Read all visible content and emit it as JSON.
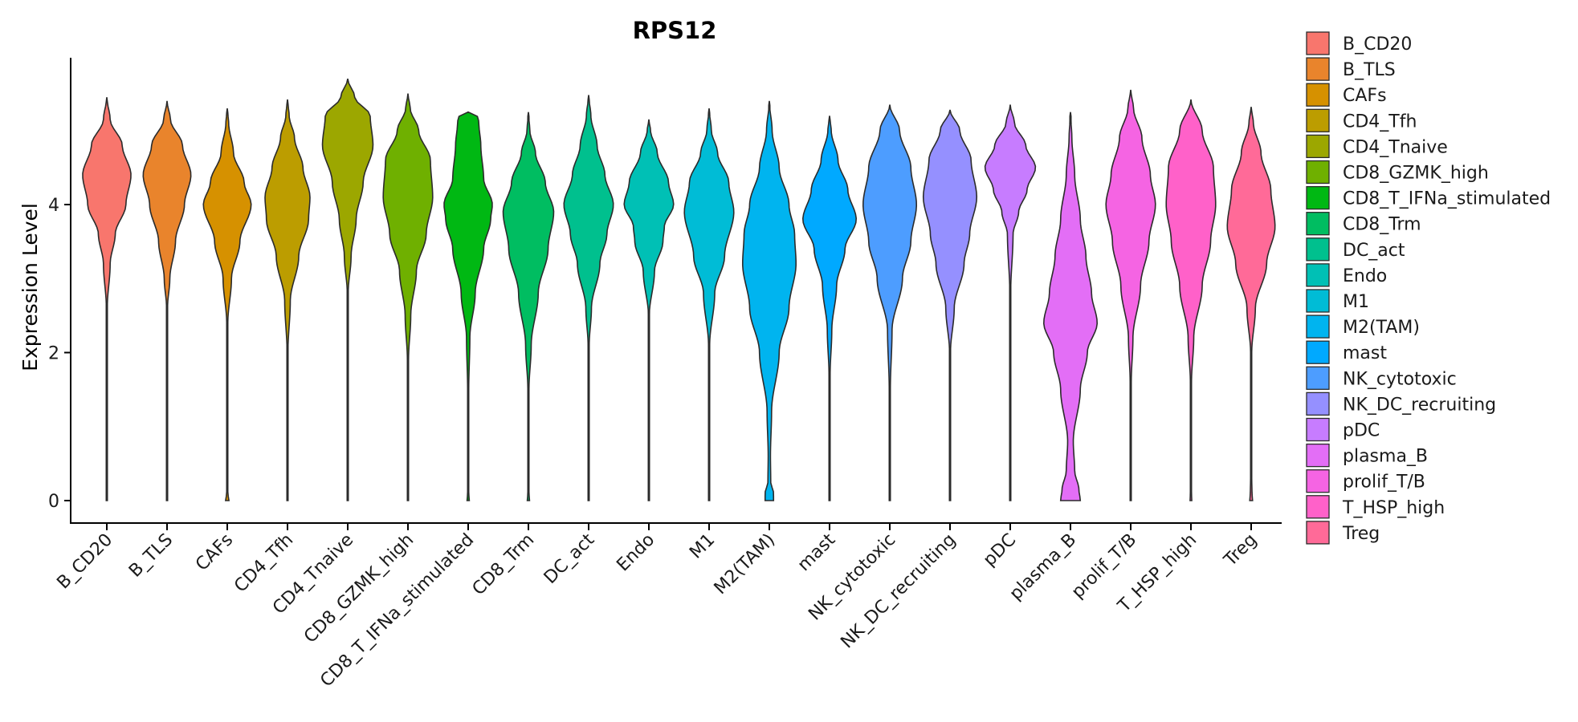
{
  "chart_data": {
    "type": "violin",
    "title": "RPS12",
    "xlabel": "",
    "ylabel": "Expression Level",
    "ylim": [
      -0.28,
      5.95
    ],
    "y_ticks": [
      0,
      2,
      4
    ],
    "grid": false,
    "legend_position": "right",
    "categories": [
      {
        "name": "B_CD20",
        "color": "#F8766D",
        "min": 0.0,
        "max": 5.45,
        "profile": [
          [
            0,
            0.01
          ],
          [
            2.6,
            0.015
          ],
          [
            3.2,
            0.12
          ],
          [
            3.6,
            0.3
          ],
          [
            4.0,
            0.68
          ],
          [
            4.4,
            0.86
          ],
          [
            4.8,
            0.55
          ],
          [
            5.15,
            0.12
          ],
          [
            5.45,
            0.0
          ]
        ]
      },
      {
        "name": "B_TLS",
        "color": "#E9842C",
        "min": 0.0,
        "max": 5.4,
        "profile": [
          [
            0,
            0.01
          ],
          [
            2.6,
            0.015
          ],
          [
            3.0,
            0.1
          ],
          [
            3.5,
            0.3
          ],
          [
            4.0,
            0.62
          ],
          [
            4.4,
            0.85
          ],
          [
            4.8,
            0.55
          ],
          [
            5.15,
            0.12
          ],
          [
            5.4,
            0.0
          ]
        ]
      },
      {
        "name": "CAFs",
        "color": "#D69100",
        "min": 0.0,
        "max": 5.3,
        "profile": [
          [
            0,
            0.06
          ],
          [
            0.1,
            0.02
          ],
          [
            2.4,
            0.02
          ],
          [
            3.0,
            0.15
          ],
          [
            3.5,
            0.45
          ],
          [
            4.0,
            0.85
          ],
          [
            4.3,
            0.6
          ],
          [
            4.7,
            0.22
          ],
          [
            5.1,
            0.05
          ],
          [
            5.3,
            0.0
          ]
        ]
      },
      {
        "name": "CD4_Tfh",
        "color": "#BC9D00",
        "min": 0.0,
        "max": 5.42,
        "profile": [
          [
            0,
            0.01
          ],
          [
            2.0,
            0.015
          ],
          [
            2.7,
            0.1
          ],
          [
            3.3,
            0.4
          ],
          [
            3.8,
            0.75
          ],
          [
            4.1,
            0.8
          ],
          [
            4.5,
            0.55
          ],
          [
            4.9,
            0.25
          ],
          [
            5.2,
            0.06
          ],
          [
            5.42,
            0.0
          ]
        ]
      },
      {
        "name": "CD4_Tnaive",
        "color": "#9CA700",
        "min": 0.0,
        "max": 5.7,
        "profile": [
          [
            0,
            0.01
          ],
          [
            2.8,
            0.015
          ],
          [
            3.3,
            0.12
          ],
          [
            3.8,
            0.3
          ],
          [
            4.3,
            0.55
          ],
          [
            4.8,
            0.9
          ],
          [
            5.2,
            0.8
          ],
          [
            5.45,
            0.25
          ],
          [
            5.7,
            0.0
          ]
        ]
      },
      {
        "name": "CD8_GZMK_high",
        "color": "#6FB000",
        "min": 0.0,
        "max": 5.5,
        "profile": [
          [
            0,
            0.02
          ],
          [
            1.9,
            0.02
          ],
          [
            2.5,
            0.1
          ],
          [
            3.1,
            0.3
          ],
          [
            3.6,
            0.65
          ],
          [
            4.1,
            0.88
          ],
          [
            4.6,
            0.8
          ],
          [
            5.0,
            0.38
          ],
          [
            5.3,
            0.08
          ],
          [
            5.5,
            0.0
          ]
        ]
      },
      {
        "name": "CD8_T_IFNa_stimulated",
        "color": "#00B813",
        "min": 0.0,
        "max": 5.25,
        "profile": [
          [
            0,
            0.04
          ],
          [
            0.1,
            0.02
          ],
          [
            1.5,
            0.02
          ],
          [
            2.2,
            0.06
          ],
          [
            2.8,
            0.25
          ],
          [
            3.4,
            0.55
          ],
          [
            3.8,
            0.8
          ],
          [
            4.0,
            0.86
          ],
          [
            4.35,
            0.55
          ],
          [
            4.8,
            0.45
          ],
          [
            5.1,
            0.38
          ],
          [
            5.25,
            0.3
          ]
        ]
      },
      {
        "name": "CD8_Trm",
        "color": "#00BD61",
        "min": 0.0,
        "max": 5.25,
        "profile": [
          [
            0,
            0.04
          ],
          [
            0.1,
            0.02
          ],
          [
            1.5,
            0.02
          ],
          [
            2.1,
            0.1
          ],
          [
            2.8,
            0.35
          ],
          [
            3.4,
            0.7
          ],
          [
            3.9,
            0.9
          ],
          [
            4.3,
            0.6
          ],
          [
            4.7,
            0.25
          ],
          [
            5.0,
            0.05
          ],
          [
            5.25,
            0.0
          ]
        ]
      },
      {
        "name": "DC_act",
        "color": "#00C08E",
        "min": 0.0,
        "max": 5.48,
        "profile": [
          [
            0,
            0.02
          ],
          [
            0.1,
            0.02
          ],
          [
            2.1,
            0.02
          ],
          [
            2.6,
            0.1
          ],
          [
            3.2,
            0.4
          ],
          [
            3.6,
            0.65
          ],
          [
            4.0,
            0.88
          ],
          [
            4.4,
            0.58
          ],
          [
            4.8,
            0.3
          ],
          [
            5.2,
            0.08
          ],
          [
            5.48,
            0.0
          ]
        ]
      },
      {
        "name": "Endo",
        "color": "#00C0B5",
        "min": 0.0,
        "max": 5.15,
        "profile": [
          [
            0,
            0.01
          ],
          [
            2.5,
            0.015
          ],
          [
            3.1,
            0.2
          ],
          [
            3.5,
            0.5
          ],
          [
            3.7,
            0.55
          ],
          [
            4.0,
            0.88
          ],
          [
            4.3,
            0.7
          ],
          [
            4.7,
            0.3
          ],
          [
            5.0,
            0.06
          ],
          [
            5.15,
            0.0
          ]
        ]
      },
      {
        "name": "M1",
        "color": "#00BCD6",
        "min": 0.0,
        "max": 5.3,
        "profile": [
          [
            0,
            0.02
          ],
          [
            0.1,
            0.02
          ],
          [
            2.1,
            0.02
          ],
          [
            2.8,
            0.2
          ],
          [
            3.3,
            0.55
          ],
          [
            3.9,
            0.88
          ],
          [
            4.3,
            0.7
          ],
          [
            4.7,
            0.3
          ],
          [
            5.0,
            0.08
          ],
          [
            5.3,
            0.0
          ]
        ]
      },
      {
        "name": "M2(TAM)",
        "color": "#00B4EF",
        "min": 0.0,
        "max": 5.4,
        "profile": [
          [
            0,
            0.15
          ],
          [
            0.1,
            0.15
          ],
          [
            0.25,
            0.05
          ],
          [
            0.6,
            0.04
          ],
          [
            1.2,
            0.08
          ],
          [
            2.0,
            0.35
          ],
          [
            2.6,
            0.7
          ],
          [
            3.2,
            0.95
          ],
          [
            3.6,
            0.9
          ],
          [
            4.0,
            0.7
          ],
          [
            4.5,
            0.35
          ],
          [
            5.0,
            0.1
          ],
          [
            5.4,
            0.0
          ]
        ]
      },
      {
        "name": "mast",
        "color": "#00A9FF",
        "min": 0.0,
        "max": 5.2,
        "profile": [
          [
            0,
            0.02
          ],
          [
            0.1,
            0.02
          ],
          [
            1.7,
            0.02
          ],
          [
            2.3,
            0.08
          ],
          [
            2.9,
            0.25
          ],
          [
            3.4,
            0.55
          ],
          [
            3.8,
            0.95
          ],
          [
            4.2,
            0.65
          ],
          [
            4.6,
            0.3
          ],
          [
            5.0,
            0.06
          ],
          [
            5.2,
            0.0
          ]
        ]
      },
      {
        "name": "NK_cytotoxic",
        "color": "#4D9DFF",
        "min": 0.0,
        "max": 5.35,
        "profile": [
          [
            0,
            0.02
          ],
          [
            0.1,
            0.02
          ],
          [
            1.5,
            0.02
          ],
          [
            2.3,
            0.08
          ],
          [
            3.0,
            0.45
          ],
          [
            3.5,
            0.75
          ],
          [
            4.0,
            0.95
          ],
          [
            4.5,
            0.75
          ],
          [
            5.0,
            0.35
          ],
          [
            5.35,
            0.0
          ]
        ]
      },
      {
        "name": "NK_DC_recruiting",
        "color": "#9590FF",
        "min": 0.0,
        "max": 5.28,
        "profile": [
          [
            0,
            0.01
          ],
          [
            2.0,
            0.015
          ],
          [
            2.6,
            0.15
          ],
          [
            3.2,
            0.5
          ],
          [
            3.6,
            0.7
          ],
          [
            4.1,
            0.95
          ],
          [
            4.6,
            0.75
          ],
          [
            5.0,
            0.35
          ],
          [
            5.28,
            0.0
          ]
        ]
      },
      {
        "name": "pDC",
        "color": "#C77CFF",
        "min": 0.0,
        "max": 5.35,
        "profile": [
          [
            0,
            0.01
          ],
          [
            2.8,
            0.015
          ],
          [
            3.6,
            0.1
          ],
          [
            3.9,
            0.3
          ],
          [
            4.2,
            0.6
          ],
          [
            4.5,
            0.9
          ],
          [
            4.8,
            0.55
          ],
          [
            5.1,
            0.15
          ],
          [
            5.35,
            0.0
          ]
        ]
      },
      {
        "name": "plasma_B",
        "color": "#E36EF6",
        "min": 0.0,
        "max": 5.25,
        "profile": [
          [
            0,
            0.35
          ],
          [
            0.15,
            0.3
          ],
          [
            0.4,
            0.15
          ],
          [
            0.8,
            0.1
          ],
          [
            1.5,
            0.35
          ],
          [
            2.0,
            0.6
          ],
          [
            2.4,
            0.95
          ],
          [
            2.8,
            0.75
          ],
          [
            3.3,
            0.55
          ],
          [
            3.8,
            0.35
          ],
          [
            4.4,
            0.15
          ],
          [
            4.9,
            0.05
          ],
          [
            5.25,
            0.0
          ]
        ]
      },
      {
        "name": "prolif_T/B",
        "color": "#F564E3",
        "min": 0.0,
        "max": 5.55,
        "profile": [
          [
            0,
            0.02
          ],
          [
            0.1,
            0.02
          ],
          [
            1.6,
            0.02
          ],
          [
            2.2,
            0.08
          ],
          [
            2.9,
            0.35
          ],
          [
            3.5,
            0.65
          ],
          [
            4.0,
            0.88
          ],
          [
            4.4,
            0.7
          ],
          [
            4.9,
            0.4
          ],
          [
            5.3,
            0.1
          ],
          [
            5.55,
            0.0
          ]
        ]
      },
      {
        "name": "T_HSP_high",
        "color": "#FF61C9",
        "min": 0.0,
        "max": 5.42,
        "profile": [
          [
            0,
            0.03
          ],
          [
            0.1,
            0.02
          ],
          [
            1.6,
            0.02
          ],
          [
            2.2,
            0.1
          ],
          [
            2.9,
            0.4
          ],
          [
            3.5,
            0.7
          ],
          [
            4.0,
            0.88
          ],
          [
            4.5,
            0.8
          ],
          [
            5.0,
            0.4
          ],
          [
            5.42,
            0.0
          ]
        ]
      },
      {
        "name": "Treg",
        "color": "#FF6A98",
        "min": 0.0,
        "max": 5.32,
        "profile": [
          [
            0,
            0.05
          ],
          [
            0.1,
            0.03
          ],
          [
            0.3,
            0.02
          ],
          [
            2.0,
            0.02
          ],
          [
            2.6,
            0.15
          ],
          [
            3.2,
            0.55
          ],
          [
            3.7,
            0.85
          ],
          [
            4.2,
            0.7
          ],
          [
            4.7,
            0.35
          ],
          [
            5.1,
            0.08
          ],
          [
            5.32,
            0.0
          ]
        ]
      }
    ]
  }
}
